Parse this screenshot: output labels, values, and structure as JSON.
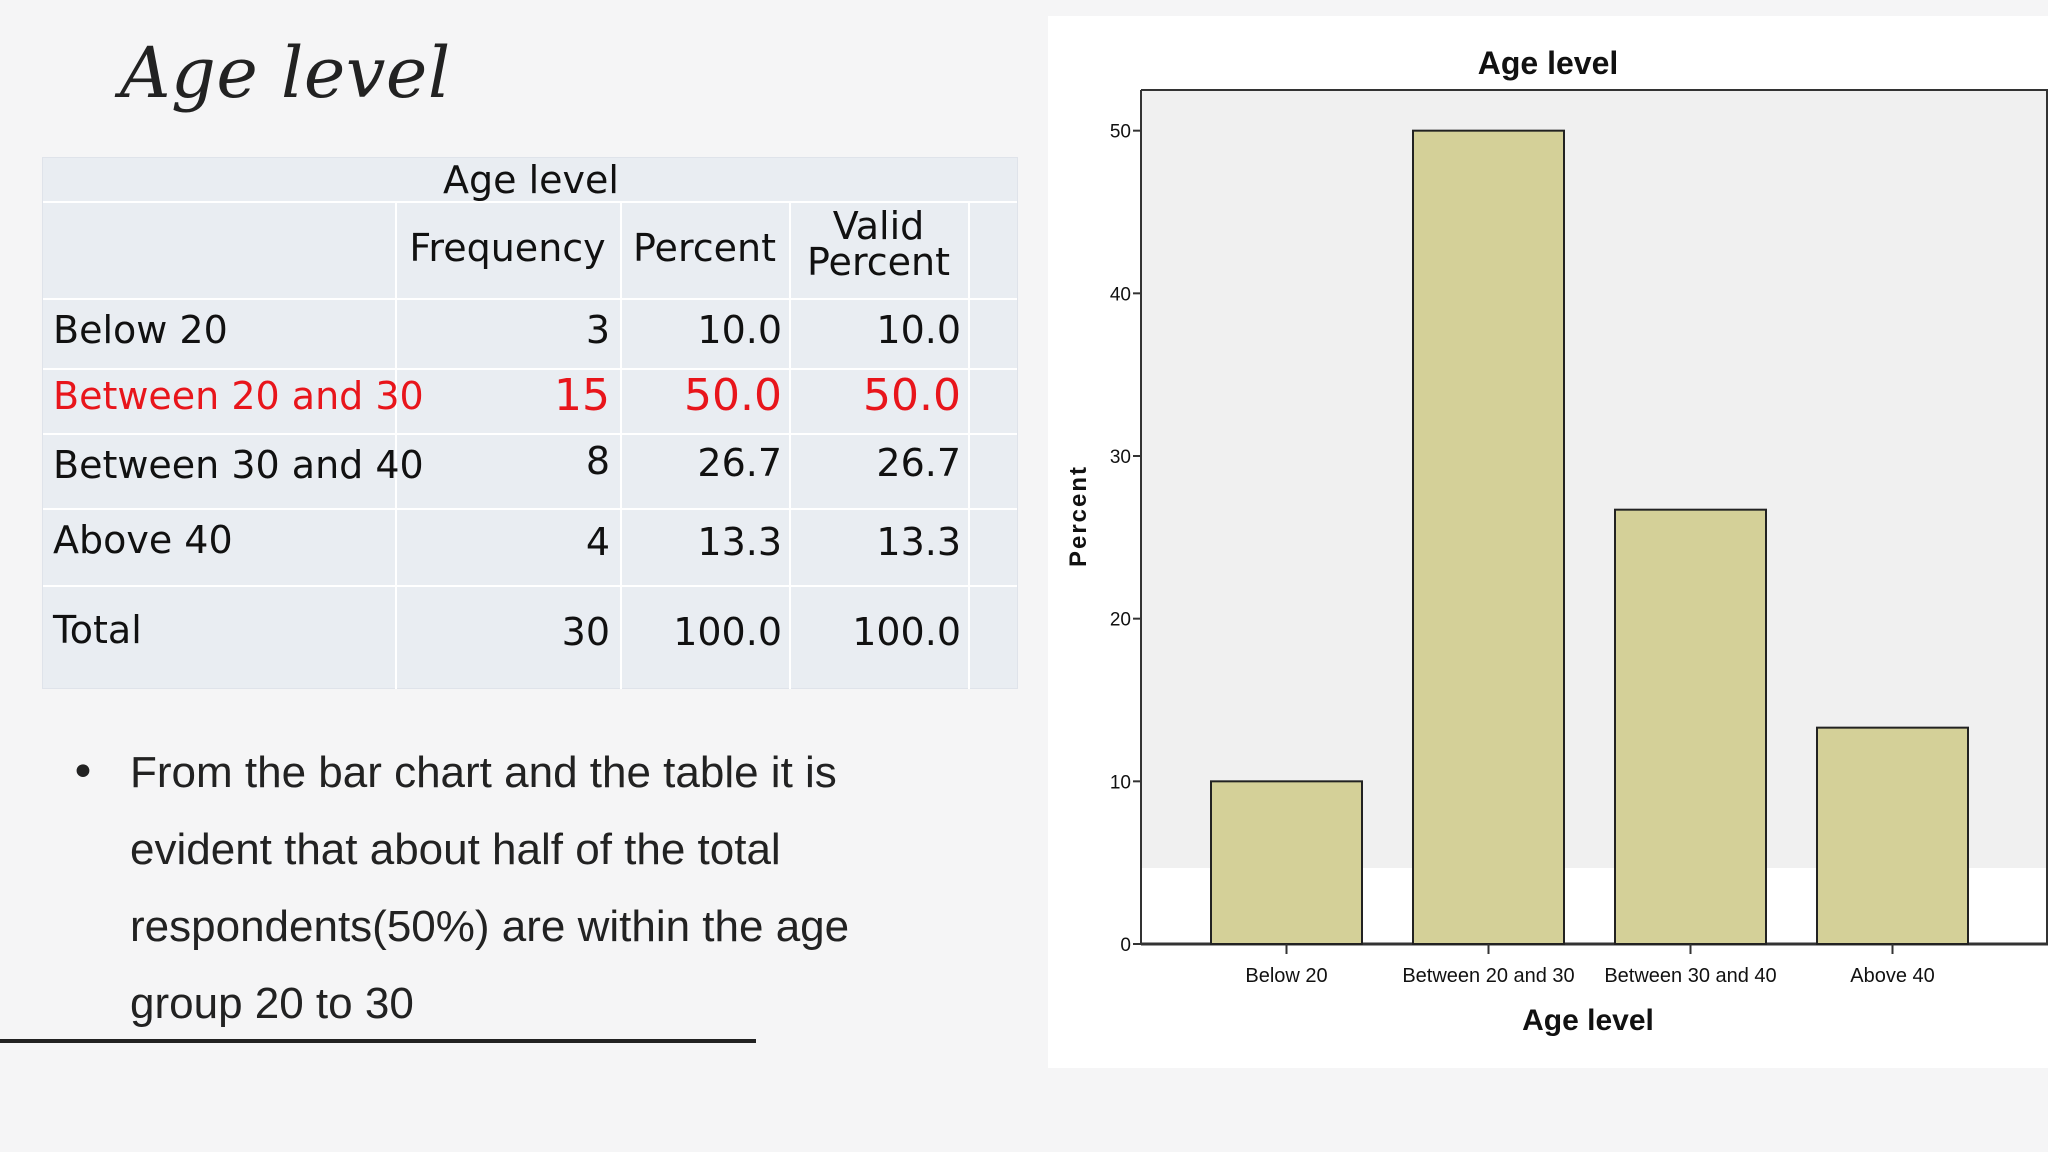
{
  "slide": {
    "title": "Age level",
    "bullet": "From the bar chart and the table it is evident that about half of the total respondents(50%) are within the age group 20 to 30"
  },
  "table": {
    "caption": "Age level",
    "headers": [
      "Frequency",
      "Percent",
      "Valid Percent"
    ],
    "header_valid_1": "Valid",
    "header_valid_2": "Percent",
    "rows": [
      {
        "label": "Below 20",
        "frequency": "3",
        "percent": "10.0",
        "valid_percent": "10.0"
      },
      {
        "label": "Between 20 and 30",
        "frequency": "15",
        "percent": "50.0",
        "valid_percent": "50.0"
      },
      {
        "label": "Between 30 and 40",
        "frequency": "8",
        "percent": "26.7",
        "valid_percent": "26.7"
      },
      {
        "label": "Above 40",
        "frequency": "4",
        "percent": "13.3",
        "valid_percent": "13.3"
      },
      {
        "label": "Total",
        "frequency": "30",
        "percent": "100.0",
        "valid_percent": "100.0"
      }
    ],
    "highlight_color": "#e8151b"
  },
  "chart_data": {
    "type": "bar",
    "title": "Age level",
    "xlabel": "Age level",
    "ylabel": "Percent",
    "categories": [
      "Below 20",
      "Between 20 and 30",
      "Between 30 and 40",
      "Above 40"
    ],
    "values": [
      10.0,
      50.0,
      26.7,
      13.3
    ],
    "ylim": [
      0,
      52.5
    ],
    "yticks": [
      0,
      10,
      20,
      30,
      40,
      50
    ],
    "bar_color": "#d4d098",
    "plot_bg": "#f0f0f0"
  }
}
